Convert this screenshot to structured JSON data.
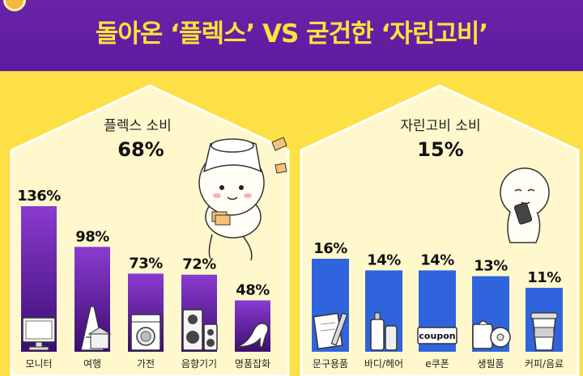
{
  "header": {
    "title": "돌아온 ‘플렉스’ VS 굳건한 ‘자린고비’"
  },
  "colors": {
    "banner": "#5d1ca0",
    "title": "#ffe23a",
    "background": "#fde046",
    "panel": "#fff8cc",
    "flex_bar_top": "#8a3bd0",
    "flex_bar_bottom": "#3b0d70",
    "frugal_bar": "#2f64dd"
  },
  "chart_data": [
    {
      "type": "bar",
      "title": "플렉스 소비",
      "subtitle": "68%",
      "categories": [
        "모니터",
        "여행",
        "가전",
        "음향기기",
        "명품잡화"
      ],
      "values": [
        136,
        98,
        73,
        72,
        48
      ],
      "value_labels": [
        "136%",
        "98%",
        "73%",
        "72%",
        "48%"
      ],
      "icons": [
        "monitor-icon",
        "eiffel-tower-icon",
        "washing-machine-icon",
        "speaker-icon",
        "high-heel-icon"
      ]
    },
    {
      "type": "bar",
      "title": "자린고비 소비",
      "subtitle": "15%",
      "categories": [
        "문구용품",
        "바디/헤어",
        "e쿠폰",
        "생필품",
        "커피/음료"
      ],
      "values": [
        16,
        14,
        14,
        13,
        11
      ],
      "value_labels": [
        "16%",
        "14%",
        "14%",
        "13%",
        "11%"
      ],
      "icons": [
        "stationery-icon",
        "bottle-icon",
        "coupon-icon",
        "tissue-icon",
        "coffee-cup-icon"
      ],
      "coupon_text": "coupon"
    }
  ]
}
